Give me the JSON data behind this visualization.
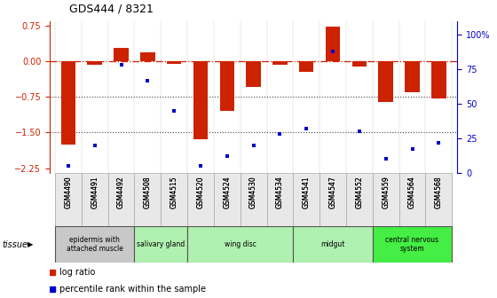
{
  "title": "GDS444 / 8321",
  "samples": [
    "GSM4490",
    "GSM4491",
    "GSM4492",
    "GSM4508",
    "GSM4515",
    "GSM4520",
    "GSM4524",
    "GSM4530",
    "GSM4534",
    "GSM4541",
    "GSM4547",
    "GSM4552",
    "GSM4559",
    "GSM4564",
    "GSM4568"
  ],
  "log_ratio": [
    -1.75,
    -0.08,
    0.28,
    0.18,
    -0.05,
    -1.65,
    -1.05,
    -0.55,
    -0.07,
    -0.22,
    0.72,
    -0.12,
    -0.85,
    -0.65,
    -0.78
  ],
  "percentile": [
    5,
    20,
    78,
    67,
    45,
    5,
    12,
    20,
    28,
    32,
    88,
    30,
    10,
    17,
    22
  ],
  "ylim_left": [
    -2.35,
    0.85
  ],
  "ylim_right": [
    0,
    110
  ],
  "yticks_left": [
    0.75,
    0,
    -0.75,
    -1.5,
    -2.25
  ],
  "yticks_right": [
    0,
    25,
    50,
    75,
    100
  ],
  "tissue_groups": [
    {
      "label": "epidermis with\nattached muscle",
      "start": 0,
      "end": 3,
      "color": "#c8c8c8"
    },
    {
      "label": "salivary gland",
      "start": 3,
      "end": 5,
      "color": "#b0f0b0"
    },
    {
      "label": "wing disc",
      "start": 5,
      "end": 9,
      "color": "#b0f0b0"
    },
    {
      "label": "midgut",
      "start": 9,
      "end": 12,
      "color": "#b0f0b0"
    },
    {
      "label": "central nervous\nsystem",
      "start": 12,
      "end": 15,
      "color": "#44ee44"
    }
  ],
  "bar_color": "#cc2200",
  "dot_color": "#0000cc",
  "zero_line_color": "#cc2200",
  "dotted_line_color": "#444444",
  "background_color": "#ffffff"
}
